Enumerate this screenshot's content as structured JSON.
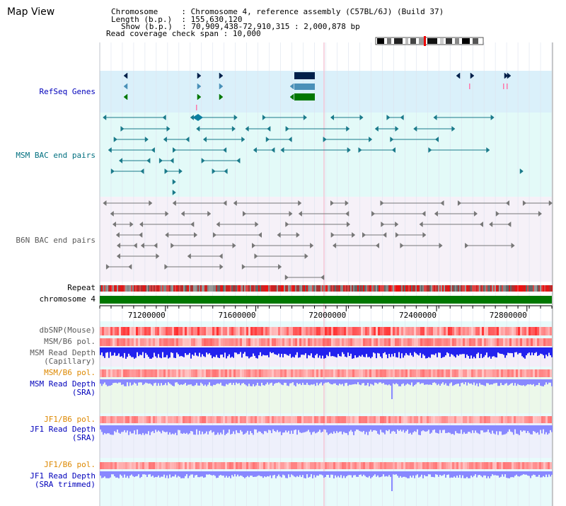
{
  "app": {
    "title": "Map View"
  },
  "header": {
    "chromosome_key": "Chromosome",
    "chromosome_value": "Chromosome 4, reference assembly (C57BL/6J) (Build 37)",
    "length_key": "Length (b.p.)",
    "length_value": "155,630,120",
    "show_key": "Show (b.p.)",
    "show_value": "70,909,438-72,910,315 : 2,000,878 bp",
    "coverage_key": "Read coverage check span",
    "coverage_value": "10,000"
  },
  "axis": {
    "start": 70909438,
    "end": 72910315,
    "ticks": [
      71200000,
      71600000,
      72000000,
      72400000,
      72800000
    ],
    "tick_labels": [
      "71200000",
      "71600000",
      "72000000",
      "72400000",
      "72800000"
    ]
  },
  "tracks": {
    "refseq": {
      "label": "RefSeq Genes"
    },
    "msm_bac": {
      "label": "MSM BAC end pairs"
    },
    "b6n_bac": {
      "label": "B6N BAC end pairs"
    },
    "repeat": {
      "label": "Repeat"
    },
    "chromosome": {
      "label": "chromosome 4"
    },
    "dbsnp": {
      "label": "dbSNP(Mouse)"
    },
    "msm_b6_pol": {
      "label": "MSM/B6 pol."
    },
    "msm_depth_cap": {
      "label_line1": "MSM Read Depth",
      "label_line2": "(Capillary)"
    },
    "msm_b6_pol_sra": {
      "label": "MSM/B6 pol."
    },
    "msm_depth_sra": {
      "label_line1": "MSM Read Depth",
      "label_line2": "(SRA)"
    },
    "jf1_b6_pol": {
      "label": "JF1/B6 pol."
    },
    "jf1_depth_sra": {
      "label_line1": "JF1 Read Depth",
      "label_line2": "(SRA)"
    },
    "jf1_b6_pol_2": {
      "label": "JF1/B6 pol."
    },
    "jf1_depth_trim": {
      "label_line1": "JF1 Read Depth",
      "label_line2": "(SRA trimmed)"
    }
  },
  "colors": {
    "refseq_bg": "#daf0fa",
    "msm_bg": "#e3faf8",
    "b6n_bg": "#f6f1f8",
    "chromosome_bar": "#007700",
    "depth_blue": "#2222ee",
    "depth_light": "#8888ff",
    "pol_red": "#ee3333",
    "gene_dark": "#00204a",
    "gene_mid": "#4a90b8",
    "gene_green": "#007700"
  }
}
